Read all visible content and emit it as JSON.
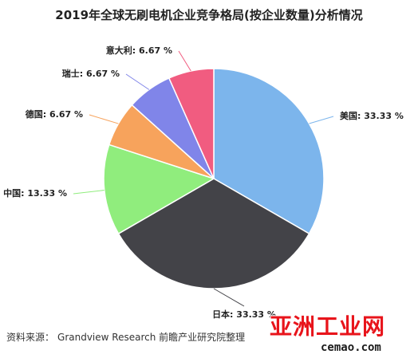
{
  "title": "2019年全球无刷电机企业竞争格局(按企业数量)分析情况",
  "source": {
    "label": "资料来源：",
    "text": "Grandview Research 前瞻产业研究院整理"
  },
  "watermark": {
    "brand_cn": "亚洲工业网",
    "url": "cemao.com"
  },
  "colors": {
    "美国": "#7cb5ec",
    "日本": "#434348",
    "中国": "#90ed7d",
    "德国": "#f7a35c",
    "瑞士": "#8085e9",
    "意大利": "#f15c80"
  },
  "chart_data": {
    "type": "pie",
    "title": "2019年全球无刷电机企业竞争格局(按企业数量)分析情况",
    "categories": [
      "美国",
      "日本",
      "中国",
      "德国",
      "瑞士",
      "意大利"
    ],
    "values": [
      33.33,
      33.33,
      13.33,
      6.67,
      6.67,
      6.67
    ],
    "labels": [
      "美国: 33.33 %",
      "日本: 33.33 %",
      "中国: 13.33 %",
      "德国: 6.67 %",
      "瑞士: 6.67 %",
      "意大利: 6.67 %"
    ],
    "start": "12 o'clock",
    "direction": "clockwise",
    "legend": "none"
  }
}
